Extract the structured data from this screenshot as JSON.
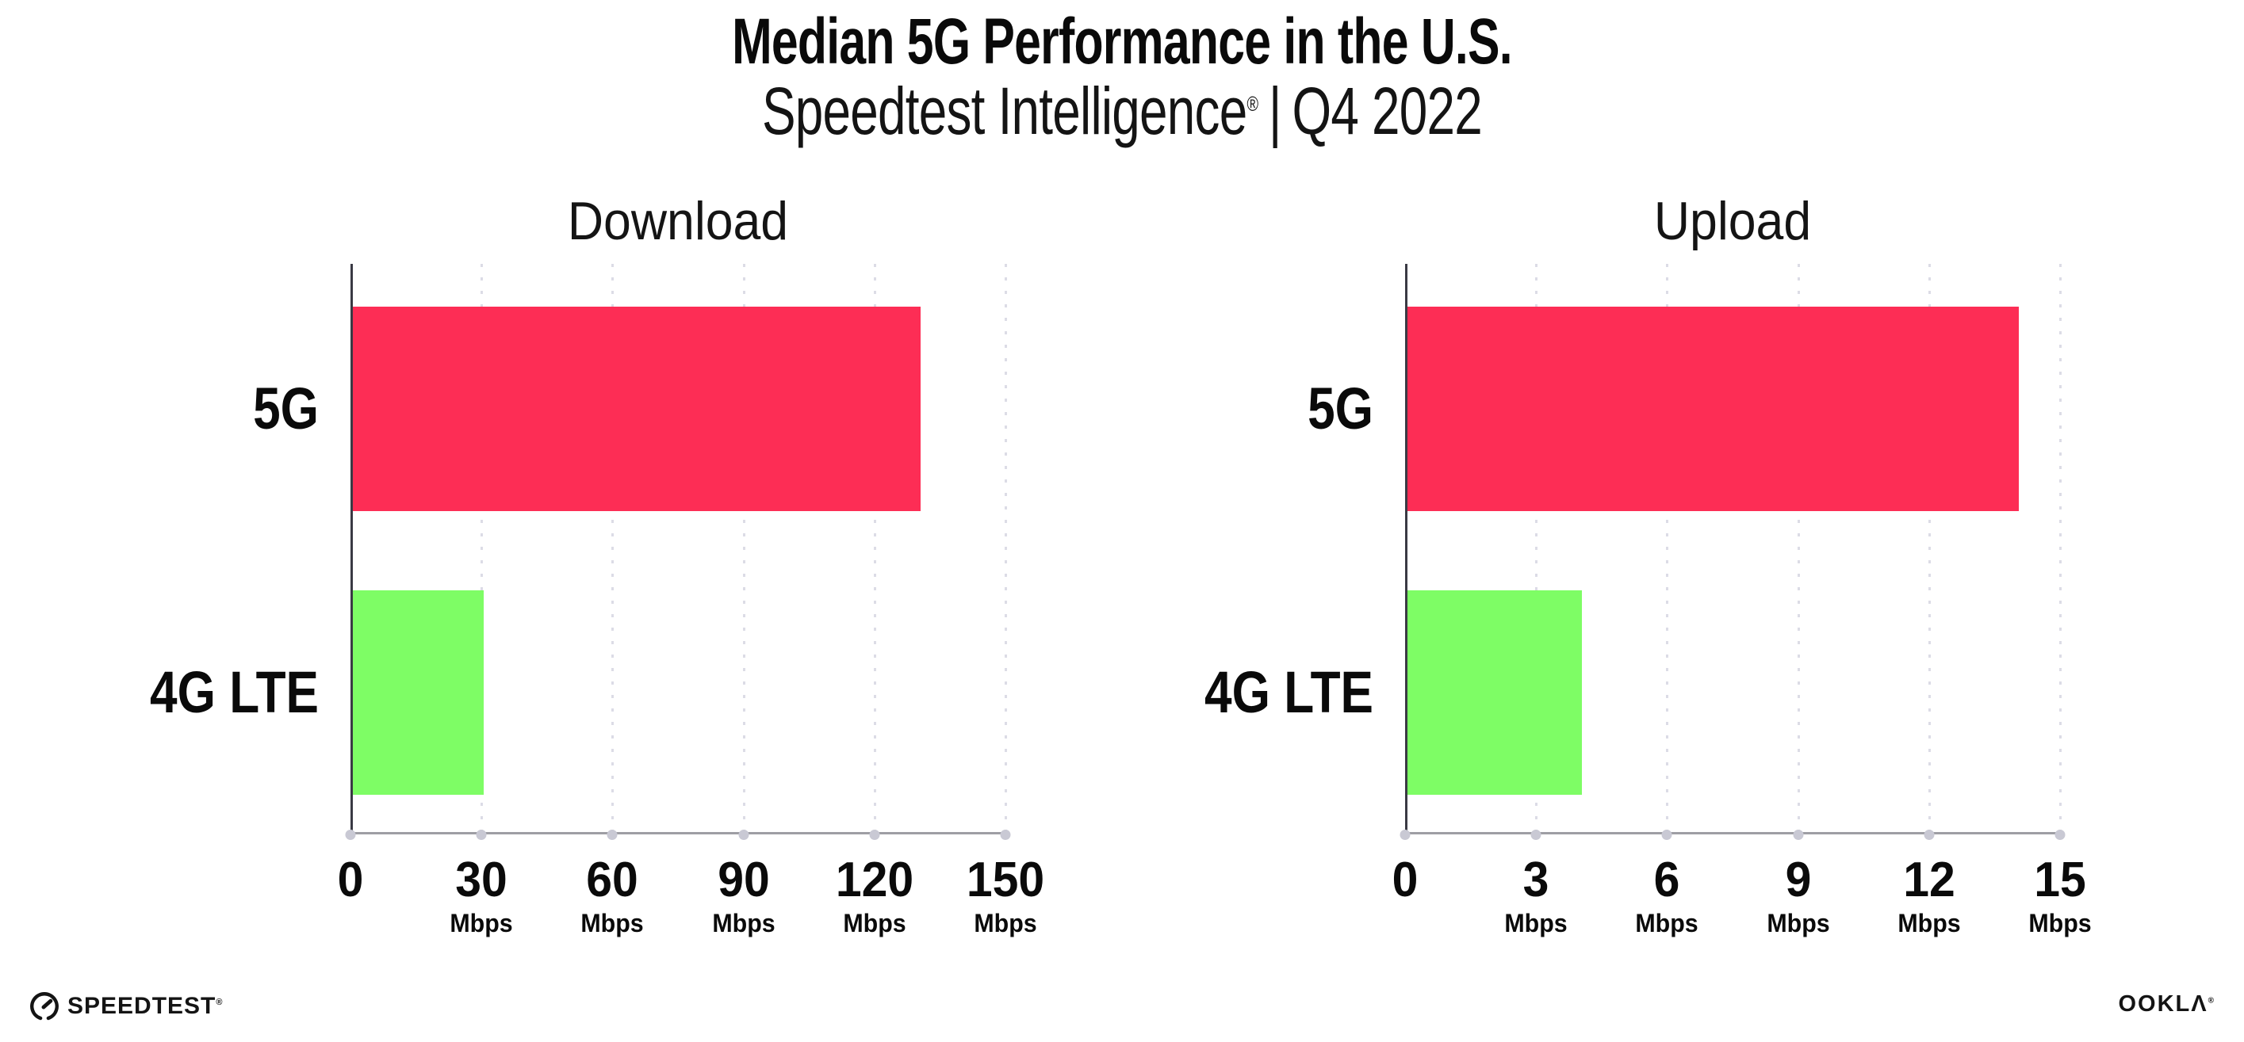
{
  "header": {
    "title": "Median 5G Performance in the U.S.",
    "subtitle_brand": "Speedtest Intelligence",
    "subtitle_registered": "®",
    "subtitle_separator": "|",
    "subtitle_period": "Q4 2022"
  },
  "chart_data": [
    {
      "type": "bar",
      "orientation": "horizontal",
      "title": "Download",
      "categories": [
        "5G",
        "4G LTE"
      ],
      "values": [
        130,
        30
      ],
      "unit": "Mbps",
      "xlim": [
        0,
        150
      ],
      "xticks": [
        0,
        30,
        60,
        90,
        120,
        150
      ],
      "bar_colors": [
        "#FD2D55",
        "#7EFD65"
      ],
      "grid": "dotted-vertical",
      "legend": "none"
    },
    {
      "type": "bar",
      "orientation": "horizontal",
      "title": "Upload",
      "categories": [
        "5G",
        "4G LTE"
      ],
      "values": [
        14,
        4
      ],
      "unit": "Mbps",
      "xlim": [
        0,
        15
      ],
      "xticks": [
        0,
        3,
        6,
        9,
        12,
        15
      ],
      "bar_colors": [
        "#FD2D55",
        "#7EFD65"
      ],
      "grid": "dotted-vertical",
      "legend": "none"
    }
  ],
  "chart_style": {
    "grid_dot_color": "#dcdce6",
    "axis_y_color": "#3a3a44",
    "axis_x_color": "#9e9ea4",
    "tick_dot_color": "#c9c9d4",
    "background": "#ffffff"
  },
  "footer": {
    "speedtest_label": "SPEEDTEST",
    "speedtest_mark": "®",
    "ookla_label": "OOKLΛ",
    "ookla_mark": "®"
  }
}
